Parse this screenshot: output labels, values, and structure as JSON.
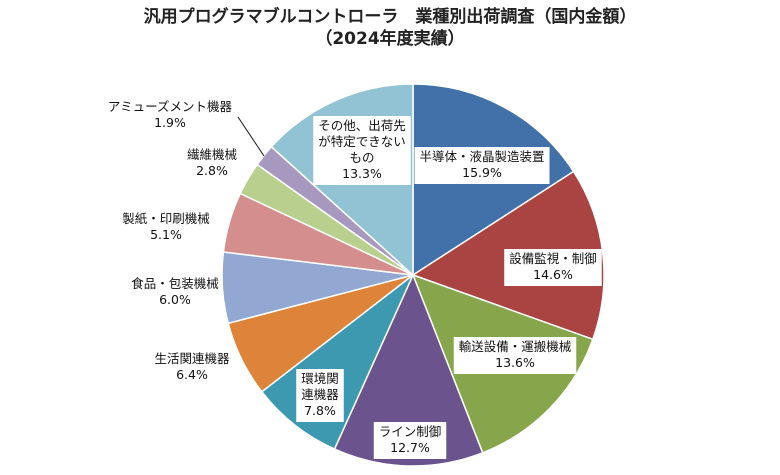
{
  "chart_data": {
    "type": "pie",
    "title": "汎用プログラマブルコントローラ　業種別出荷調査（国内金額）",
    "subtitle": "（2024年度実績）",
    "start": "12 o'clock, clockwise",
    "slices": [
      {
        "label_lines": [
          "半導体・液晶製造装置"
        ],
        "value": 15.9,
        "value_label": "15.9%",
        "color": "#4270A8",
        "label_box": true
      },
      {
        "label_lines": [
          "設備監視・制御"
        ],
        "value": 14.6,
        "value_label": "14.6%",
        "color": "#A94442",
        "label_box": true
      },
      {
        "label_lines": [
          "輸送設備・運搬機械"
        ],
        "value": 13.6,
        "value_label": "13.6%",
        "color": "#87A54A",
        "label_box": true
      },
      {
        "label_lines": [
          "ライン制御"
        ],
        "value": 12.7,
        "value_label": "12.7%",
        "color": "#6B548E",
        "label_box": true
      },
      {
        "label_lines": [
          "環境関",
          "連機器"
        ],
        "value": 7.8,
        "value_label": "7.8%",
        "color": "#3D99B0",
        "label_box": true
      },
      {
        "label_lines": [
          "生活関連機器"
        ],
        "value": 6.4,
        "value_label": "6.4%",
        "color": "#DE833A",
        "label_box": false
      },
      {
        "label_lines": [
          "食品・包装機械"
        ],
        "value": 6.0,
        "value_label": "6.0%",
        "color": "#92A7D1",
        "label_box": false
      },
      {
        "label_lines": [
          "製紙・印刷機械"
        ],
        "value": 5.1,
        "value_label": "5.1%",
        "color": "#D48E8D",
        "label_box": false
      },
      {
        "label_lines": [
          "繊維機械"
        ],
        "value": 2.8,
        "value_label": "2.8%",
        "color": "#B8CF8D",
        "label_box": false
      },
      {
        "label_lines": [
          "アミューズメント機器"
        ],
        "value": 1.9,
        "value_label": "1.9%",
        "color": "#A698BF",
        "label_box": false
      },
      {
        "label_lines": [
          "その他、出荷先",
          "が特定できない",
          "もの"
        ],
        "value": 13.3,
        "value_label": "13.3%",
        "color": "#91C3D5",
        "label_box": true
      }
    ],
    "legend": "none (data labels)"
  }
}
